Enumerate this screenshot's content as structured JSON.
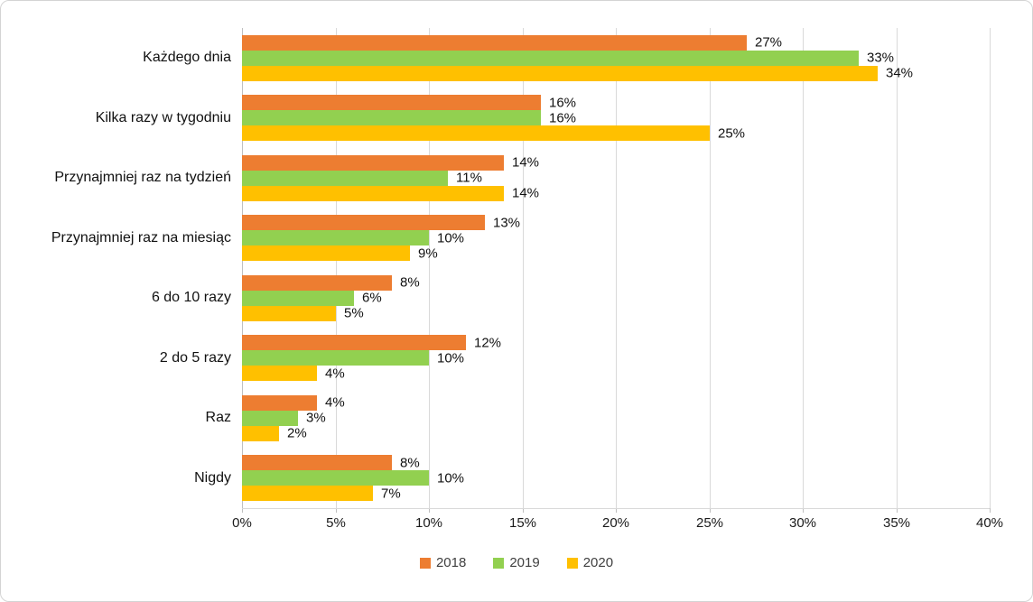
{
  "chart_data": {
    "type": "bar",
    "orientation": "horizontal",
    "title": "",
    "xlabel": "",
    "ylabel": "",
    "xlim": [
      0,
      40
    ],
    "x_tick_step": 5,
    "x_ticks": [
      "0%",
      "5%",
      "10%",
      "15%",
      "20%",
      "25%",
      "30%",
      "35%",
      "40%"
    ],
    "grid": true,
    "legend_position": "bottom",
    "value_suffix": "%",
    "categories": [
      "Każdego dnia",
      "Kilka razy w tygodniu",
      "Przynajmniej raz na tydzień",
      "Przynajmniej raz na miesiąc",
      "6 do 10 razy",
      "2 do 5 razy",
      "Raz",
      "Nigdy"
    ],
    "series": [
      {
        "name": "2018",
        "color": "#ED7D31",
        "values": [
          27,
          16,
          14,
          13,
          8,
          12,
          4,
          8
        ]
      },
      {
        "name": "2019",
        "color": "#92D050",
        "values": [
          33,
          16,
          11,
          10,
          6,
          10,
          3,
          10
        ]
      },
      {
        "name": "2020",
        "color": "#FFC000",
        "values": [
          34,
          25,
          14,
          9,
          5,
          4,
          2,
          7
        ]
      }
    ],
    "data_labels": [
      [
        "27%",
        "16%",
        "14%",
        "13%",
        "8%",
        "12%",
        "4%",
        "8%"
      ],
      [
        "33%",
        "16%",
        "11%",
        "10%",
        "6%",
        "10%",
        "3%",
        "10%"
      ],
      [
        "34%",
        "25%",
        "14%",
        "9%",
        "5%",
        "4%",
        "2%",
        "7%"
      ]
    ],
    "colors": {
      "gridline": "#d9d9d9",
      "axis_line": "#bfbfbf",
      "text": "#111111",
      "legend_text": "#404040",
      "frame_border": "#d4d4d4"
    }
  }
}
